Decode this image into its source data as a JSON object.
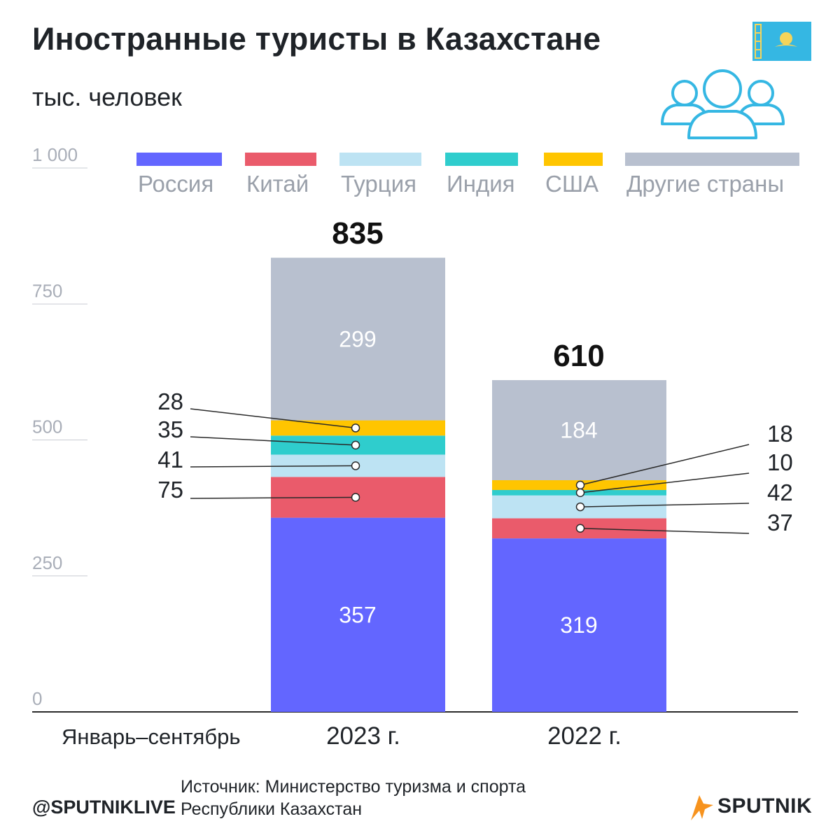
{
  "header": {
    "title": "Иностранные туристы в Казахстане",
    "subtitle": "тыс. человек"
  },
  "icons": {
    "flag": "kazakhstan-flag-icon",
    "people": "people-group-icon",
    "brand": "sputnik-logo-icon"
  },
  "chart_data": {
    "type": "bar",
    "stacked": true,
    "categories": [
      "2023 г.",
      "2022 г."
    ],
    "category_axis_label": "Январь–сентябрь",
    "series": [
      {
        "name": "Россия",
        "color": "#6366ff",
        "values": [
          357,
          319
        ]
      },
      {
        "name": "Китай",
        "color": "#ea5b6b",
        "values": [
          75,
          37
        ]
      },
      {
        "name": "Турция",
        "color": "#bde3f3",
        "values": [
          41,
          42
        ]
      },
      {
        "name": "Индия",
        "color": "#2fcdcd",
        "values": [
          35,
          10
        ]
      },
      {
        "name": "США",
        "color": "#ffc500",
        "values": [
          28,
          18
        ]
      },
      {
        "name": "Другие страны",
        "color": "#b8c0cf",
        "values": [
          299,
          184
        ]
      }
    ],
    "totals": [
      835,
      610
    ],
    "ylim": [
      0,
      1000
    ],
    "yticks": [
      0,
      250,
      500,
      750,
      1000
    ],
    "ytick_labels": [
      "0",
      "250",
      "500",
      "750",
      "1 000"
    ],
    "legend_position": "top"
  },
  "footer": {
    "handle": "@SPUTNIKLIVE",
    "source_line1": "Источник: Министерство туризма и спорта",
    "source_line2": "Республики Казахстан",
    "brand": "SPUTNIK"
  }
}
